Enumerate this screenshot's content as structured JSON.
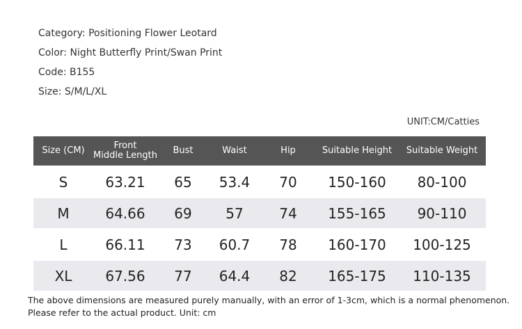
{
  "info": [
    "Category: Positioning Flower Leotard",
    "Color: Night Butterfly Print/Swan Print",
    "Code: B155",
    "Size: S/M/L/XL"
  ],
  "unit": "UNIT:CM/Catties",
  "table": {
    "header": [
      "Size (CM)",
      "Front\nMiddle Length",
      "Bust",
      "Waist",
      "Hip",
      "Suitable Height",
      "Suitable Weight"
    ],
    "rows": [
      [
        "S",
        63.21,
        65,
        53.4,
        70,
        "150-160",
        "80-100"
      ],
      [
        "M",
        64.66,
        69,
        57,
        74,
        "155-165",
        "90-110"
      ],
      [
        "L",
        66.11,
        73,
        60.7,
        78,
        "160-170",
        "100-125"
      ],
      [
        "XL",
        67.56,
        77,
        64.4,
        82,
        "165-175",
        "110-135"
      ]
    ]
  },
  "footer": [
    "The above dimensions are measured purely manually, with an error of 1-3cm, which is a normal phenomenon.",
    "Please refer to the actual product. Unit: cm"
  ]
}
